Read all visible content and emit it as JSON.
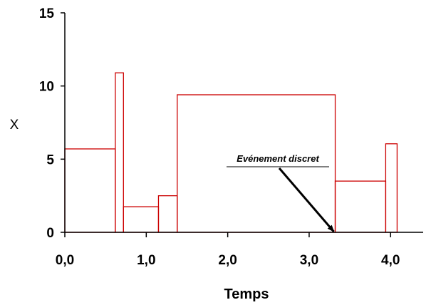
{
  "chart_data": {
    "type": "bar",
    "title": "",
    "xlabel": "Temps",
    "ylabel": "X",
    "xlim": [
      0,
      4.4
    ],
    "ylim": [
      0,
      15
    ],
    "x_ticks": [
      0,
      1,
      2,
      3,
      4
    ],
    "x_tick_labels": [
      "0,0",
      "1,0",
      "2,0",
      "3,0",
      "4,0"
    ],
    "y_ticks": [
      0,
      5,
      10,
      15
    ],
    "y_tick_labels": [
      "0",
      "5",
      "10",
      "15"
    ],
    "grid": false,
    "legend": "none",
    "bar_color": "#cc0000",
    "bars": [
      {
        "x0": 0.0,
        "x1": 0.62,
        "value": 5.7
      },
      {
        "x0": 0.62,
        "x1": 0.72,
        "value": 10.9
      },
      {
        "x0": 0.72,
        "x1": 1.15,
        "value": 1.75
      },
      {
        "x0": 1.15,
        "x1": 1.38,
        "value": 2.5
      },
      {
        "x0": 1.38,
        "x1": 3.32,
        "value": 9.4
      },
      {
        "x0": 3.32,
        "x1": 3.94,
        "value": 3.5
      },
      {
        "x0": 3.94,
        "x1": 4.08,
        "value": 6.05
      }
    ],
    "annotations": [
      {
        "text": "Evénement discret",
        "arrow_to": {
          "x": 3.32,
          "y": 0
        }
      }
    ]
  }
}
